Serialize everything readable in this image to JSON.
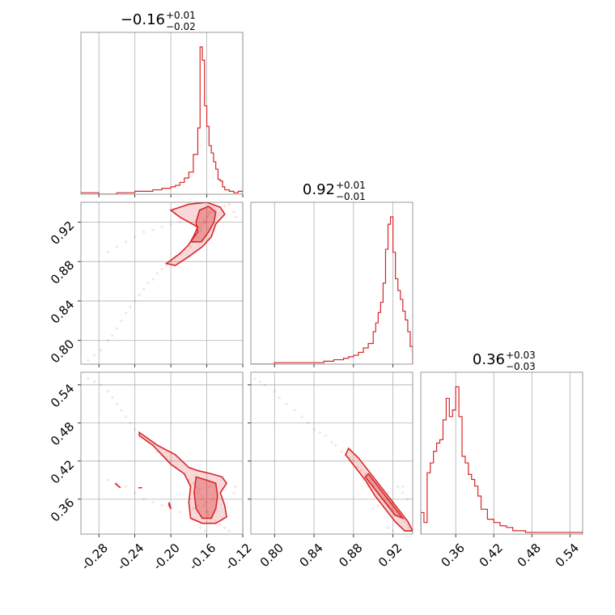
{
  "chart_data": {
    "type": "scatter",
    "subtype": "corner-plot",
    "color": "#d62728",
    "grid": true,
    "parameters": [
      {
        "range": [
          -0.3,
          -0.12
        ],
        "ticks": [
          "-0.28",
          "-0.24",
          "-0.20",
          "-0.16",
          "-0.12"
        ],
        "tick_values": [
          -0.28,
          -0.24,
          -0.2,
          -0.16,
          -0.12
        ],
        "title": {
          "median": "−0.16",
          "plus": "+0.01",
          "minus": "−0.02"
        },
        "hist_edges": [
          -0.3,
          -0.28,
          -0.26,
          -0.24,
          -0.23,
          -0.22,
          -0.21,
          -0.2,
          -0.195,
          -0.19,
          -0.185,
          -0.18,
          -0.175,
          -0.17,
          -0.1675,
          -0.165,
          -0.1625,
          -0.16,
          -0.1575,
          -0.155,
          -0.1525,
          -0.15,
          -0.1475,
          -0.145,
          -0.1425,
          -0.14,
          -0.135,
          -0.13,
          -0.125,
          -0.12
        ],
        "hist_values": [
          1,
          0,
          1,
          2,
          2,
          3,
          4,
          5,
          6,
          8,
          11,
          15,
          27,
          45,
          100,
          91,
          60,
          46,
          33,
          28,
          22,
          17,
          10,
          9,
          5,
          3,
          2,
          1,
          2
        ]
      },
      {
        "range": [
          0.776,
          0.94
        ],
        "ticks": [
          "0.80",
          "0.84",
          "0.88",
          "0.92"
        ],
        "tick_values": [
          0.8,
          0.84,
          0.88,
          0.92
        ],
        "title": {
          "median": "0.92",
          "plus": "+0.01",
          "minus": "−0.01"
        },
        "hist_edges": [
          0.776,
          0.8,
          0.82,
          0.84,
          0.85,
          0.86,
          0.87,
          0.875,
          0.88,
          0.885,
          0.89,
          0.895,
          0.9,
          0.9025,
          0.905,
          0.9075,
          0.91,
          0.9125,
          0.915,
          0.9175,
          0.92,
          0.9225,
          0.925,
          0.9275,
          0.93,
          0.9325,
          0.935,
          0.9375,
          0.94
        ],
        "hist_values": [
          0,
          1,
          1,
          1,
          2,
          3,
          4,
          5,
          6,
          8,
          11,
          14,
          22,
          28,
          35,
          42,
          55,
          78,
          95,
          100,
          76,
          58,
          50,
          44,
          36,
          30,
          22,
          12
        ]
      },
      {
        "range": [
          0.305,
          0.56
        ],
        "ticks": [
          "0.36",
          "0.42",
          "0.48",
          "0.54"
        ],
        "tick_values": [
          0.36,
          0.42,
          0.48,
          0.54
        ],
        "title": {
          "median": "0.36",
          "plus": "+0.03",
          "minus": "−0.03"
        },
        "hist_edges": [
          0.305,
          0.31,
          0.315,
          0.32,
          0.325,
          0.33,
          0.335,
          0.34,
          0.345,
          0.35,
          0.355,
          0.36,
          0.365,
          0.37,
          0.375,
          0.38,
          0.385,
          0.39,
          0.395,
          0.4,
          0.405,
          0.41,
          0.42,
          0.43,
          0.44,
          0.45,
          0.46,
          0.47,
          0.48,
          0.49,
          0.5,
          0.52,
          0.54,
          0.56
        ],
        "hist_values": [
          13,
          7,
          37,
          43,
          50,
          55,
          57,
          69,
          82,
          71,
          75,
          89,
          71,
          47,
          43,
          36,
          33,
          29,
          23,
          15,
          15,
          9,
          7,
          5,
          4,
          2,
          2,
          1,
          1,
          1,
          1,
          1,
          1
        ]
      }
    ],
    "samples": [
      [
        -0.165,
        0.918,
        0.36
      ],
      [
        -0.16,
        0.925,
        0.34
      ],
      [
        -0.155,
        0.93,
        0.33
      ],
      [
        -0.17,
        0.915,
        0.37
      ],
      [
        -0.163,
        0.922,
        0.35
      ],
      [
        -0.158,
        0.928,
        0.335
      ],
      [
        -0.168,
        0.91,
        0.375
      ],
      [
        -0.161,
        0.92,
        0.355
      ],
      [
        -0.175,
        0.905,
        0.385
      ],
      [
        -0.15,
        0.932,
        0.325
      ],
      [
        -0.166,
        0.912,
        0.365
      ],
      [
        -0.159,
        0.926,
        0.34
      ],
      [
        -0.18,
        0.898,
        0.39
      ],
      [
        -0.185,
        0.892,
        0.4
      ],
      [
        -0.19,
        0.888,
        0.405
      ],
      [
        -0.195,
        0.884,
        0.41
      ],
      [
        -0.2,
        0.88,
        0.42
      ],
      [
        -0.205,
        0.876,
        0.425
      ],
      [
        -0.21,
        0.872,
        0.43
      ],
      [
        -0.215,
        0.868,
        0.435
      ],
      [
        -0.22,
        0.862,
        0.445
      ],
      [
        -0.225,
        0.858,
        0.45
      ],
      [
        -0.23,
        0.852,
        0.46
      ],
      [
        -0.235,
        0.846,
        0.465
      ],
      [
        -0.24,
        0.84,
        0.47
      ],
      [
        -0.245,
        0.834,
        0.48
      ],
      [
        -0.25,
        0.828,
        0.49
      ],
      [
        -0.255,
        0.82,
        0.5
      ],
      [
        -0.26,
        0.812,
        0.51
      ],
      [
        -0.265,
        0.805,
        0.52
      ],
      [
        -0.27,
        0.8,
        0.53
      ],
      [
        -0.278,
        0.79,
        0.54
      ],
      [
        -0.285,
        0.785,
        0.545
      ],
      [
        -0.292,
        0.78,
        0.55
      ],
      [
        -0.24,
        0.905,
        0.37
      ],
      [
        -0.23,
        0.91,
        0.36
      ],
      [
        -0.25,
        0.9,
        0.38
      ],
      [
        -0.26,
        0.895,
        0.385
      ],
      [
        -0.27,
        0.89,
        0.39
      ],
      [
        -0.22,
        0.912,
        0.355
      ],
      [
        -0.21,
        0.915,
        0.35
      ],
      [
        -0.2,
        0.918,
        0.345
      ],
      [
        -0.19,
        0.92,
        0.34
      ],
      [
        -0.145,
        0.935,
        0.32
      ],
      [
        -0.14,
        0.936,
        0.315
      ],
      [
        -0.135,
        0.938,
        0.31
      ],
      [
        -0.13,
        0.93,
        0.37
      ],
      [
        -0.128,
        0.925,
        0.38
      ],
      [
        -0.172,
        0.9,
        0.38
      ],
      [
        -0.178,
        0.895,
        0.38
      ],
      [
        -0.157,
        0.93,
        0.38
      ],
      [
        -0.162,
        0.92,
        0.31
      ],
      [
        -0.167,
        0.915,
        0.315
      ],
      [
        -0.153,
        0.935,
        0.36
      ],
      [
        -0.17,
        0.905,
        0.35
      ],
      [
        -0.175,
        0.9,
        0.345
      ]
    ],
    "contours": [
      {
        "pair": [
          0,
          1
        ],
        "outer": [
          [
            -0.205,
            0.878
          ],
          [
            -0.19,
            0.888
          ],
          [
            -0.18,
            0.897
          ],
          [
            -0.175,
            0.905
          ],
          [
            -0.17,
            0.915
          ],
          [
            -0.19,
            0.925
          ],
          [
            -0.2,
            0.932
          ],
          [
            -0.18,
            0.938
          ],
          [
            -0.16,
            0.94
          ],
          [
            -0.145,
            0.935
          ],
          [
            -0.14,
            0.928
          ],
          [
            -0.15,
            0.918
          ],
          [
            -0.155,
            0.905
          ],
          [
            -0.165,
            0.895
          ],
          [
            -0.18,
            0.885
          ],
          [
            -0.195,
            0.876
          ]
        ],
        "inner": [
          [
            -0.178,
            0.9
          ],
          [
            -0.17,
            0.91
          ],
          [
            -0.172,
            0.92
          ],
          [
            -0.168,
            0.932
          ],
          [
            -0.158,
            0.936
          ],
          [
            -0.15,
            0.93
          ],
          [
            -0.152,
            0.92
          ],
          [
            -0.158,
            0.91
          ],
          [
            -0.166,
            0.9
          ]
        ]
      },
      {
        "pair": [
          0,
          2
        ],
        "outer": [
          [
            -0.235,
            0.465
          ],
          [
            -0.215,
            0.445
          ],
          [
            -0.195,
            0.43
          ],
          [
            -0.18,
            0.41
          ],
          [
            -0.17,
            0.405
          ],
          [
            -0.155,
            0.4
          ],
          [
            -0.143,
            0.395
          ],
          [
            -0.138,
            0.385
          ],
          [
            -0.145,
            0.37
          ],
          [
            -0.14,
            0.35
          ],
          [
            -0.138,
            0.332
          ],
          [
            -0.15,
            0.322
          ],
          [
            -0.165,
            0.322
          ],
          [
            -0.178,
            0.33
          ],
          [
            -0.18,
            0.355
          ],
          [
            -0.178,
            0.38
          ],
          [
            -0.185,
            0.4
          ],
          [
            -0.2,
            0.415
          ],
          [
            -0.22,
            0.445
          ],
          [
            -0.235,
            0.46
          ]
        ],
        "inner": [
          [
            -0.172,
            0.395
          ],
          [
            -0.16,
            0.39
          ],
          [
            -0.15,
            0.385
          ],
          [
            -0.148,
            0.365
          ],
          [
            -0.15,
            0.345
          ],
          [
            -0.155,
            0.33
          ],
          [
            -0.165,
            0.33
          ],
          [
            -0.172,
            0.345
          ],
          [
            -0.174,
            0.37
          ]
        ]
      },
      {
        "pair": [
          1,
          2
        ],
        "outer": [
          [
            0.875,
            0.44
          ],
          [
            0.885,
            0.425
          ],
          [
            0.895,
            0.405
          ],
          [
            0.905,
            0.385
          ],
          [
            0.915,
            0.365
          ],
          [
            0.925,
            0.345
          ],
          [
            0.935,
            0.325
          ],
          [
            0.94,
            0.31
          ],
          [
            0.932,
            0.31
          ],
          [
            0.922,
            0.325
          ],
          [
            0.912,
            0.345
          ],
          [
            0.902,
            0.365
          ],
          [
            0.892,
            0.39
          ],
          [
            0.882,
            0.41
          ],
          [
            0.872,
            0.43
          ]
        ],
        "inner": [
          [
            0.895,
            0.4
          ],
          [
            0.905,
            0.38
          ],
          [
            0.915,
            0.36
          ],
          [
            0.925,
            0.34
          ],
          [
            0.93,
            0.33
          ],
          [
            0.922,
            0.335
          ],
          [
            0.912,
            0.355
          ],
          [
            0.902,
            0.375
          ],
          [
            0.892,
            0.395
          ]
        ]
      }
    ],
    "isolated_contours": [
      {
        "pair": [
          0,
          2
        ],
        "points": [
          [
            -0.262,
            0.385
          ],
          [
            -0.258,
            0.38
          ],
          [
            -0.256,
            0.378
          ]
        ]
      },
      {
        "pair": [
          0,
          2
        ],
        "points": [
          [
            -0.202,
            0.35
          ],
          [
            -0.202,
            0.355
          ],
          [
            -0.2,
            0.345
          ]
        ]
      },
      {
        "pair": [
          0,
          2
        ],
        "points": [
          [
            -0.236,
            0.378
          ],
          [
            -0.232,
            0.378
          ]
        ]
      }
    ]
  }
}
